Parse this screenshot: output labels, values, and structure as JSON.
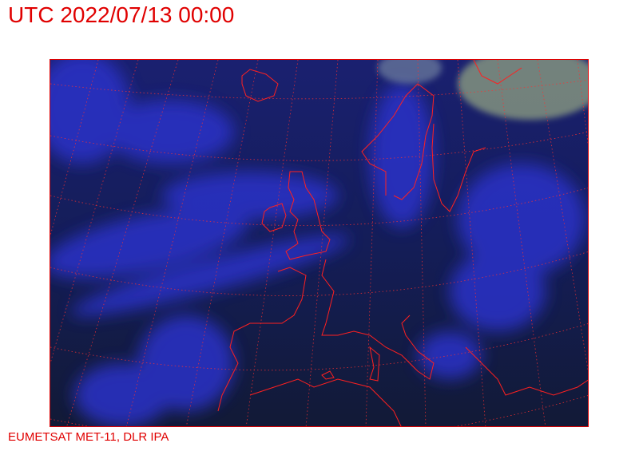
{
  "header": {
    "title": "UTC 2022/07/13 00:00"
  },
  "map": {
    "type": "satellite-image",
    "region": "Europe",
    "overlays": [
      "coastlines",
      "lat-lon-graticule"
    ],
    "colors": {
      "background": "#141c3c",
      "cloud": "#2a2fd0",
      "coastline": "#ff2020",
      "graticule": "#ff2020",
      "text": "#e00000"
    }
  },
  "footer": {
    "credit": "EUMETSAT MET-11, DLR IPA"
  }
}
